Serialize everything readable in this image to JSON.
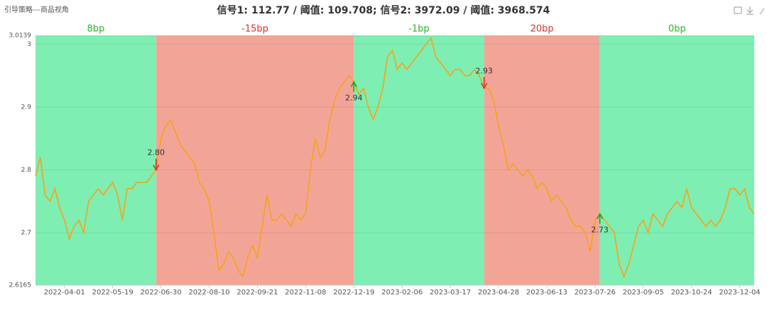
{
  "chart_data": {
    "type": "line",
    "page_label": "引导策略---商品视角",
    "title": "信号1: 112.77 / 阈值: 109.708; 信号2: 3972.09 / 阈值: 3968.574",
    "categories": [
      null,
      null,
      null,
      null,
      null,
      null,
      "2022-04-01",
      null,
      null,
      null,
      null,
      null,
      null,
      null,
      null,
      null,
      "2022-05-19",
      null,
      null,
      null,
      null,
      null,
      null,
      null,
      null,
      null,
      "2022-06-30",
      null,
      null,
      null,
      null,
      null,
      null,
      null,
      null,
      null,
      "2022-08-10",
      null,
      null,
      null,
      null,
      null,
      null,
      null,
      null,
      null,
      "2022-09-21",
      null,
      null,
      null,
      null,
      null,
      null,
      null,
      null,
      null,
      "2022-11-08",
      null,
      null,
      null,
      null,
      null,
      null,
      null,
      null,
      null,
      "2022-12-19",
      null,
      null,
      null,
      null,
      null,
      null,
      null,
      null,
      null,
      "2023-02-06",
      null,
      null,
      null,
      null,
      null,
      null,
      null,
      null,
      null,
      "2023-03-17",
      null,
      null,
      null,
      null,
      null,
      null,
      null,
      null,
      null,
      "2023-04-28",
      null,
      null,
      null,
      null,
      null,
      null,
      null,
      null,
      null,
      "2023-06-13",
      null,
      null,
      null,
      null,
      null,
      null,
      null,
      null,
      null,
      "2023-07-26",
      null,
      null,
      null,
      null,
      null,
      null,
      null,
      null,
      null,
      "2023-09-05",
      null,
      null,
      null,
      null,
      null,
      null,
      null,
      null,
      null,
      "2023-10-24",
      null,
      null,
      null,
      null,
      null,
      null,
      null,
      null,
      null,
      "2023-12-04",
      null,
      null,
      null
    ],
    "series": [
      {
        "color": "#f7a21b",
        "values": [
          2.79,
          2.82,
          2.76,
          2.75,
          2.77,
          2.74,
          2.72,
          2.69,
          2.71,
          2.72,
          2.7,
          2.75,
          2.76,
          2.77,
          2.76,
          2.77,
          2.78,
          2.76,
          2.72,
          2.77,
          2.77,
          2.78,
          2.78,
          2.78,
          2.79,
          2.8,
          2.85,
          2.87,
          2.88,
          2.86,
          2.84,
          2.83,
          2.82,
          2.81,
          2.78,
          2.77,
          2.75,
          2.7,
          2.64,
          2.65,
          2.67,
          2.66,
          2.64,
          2.63,
          2.66,
          2.68,
          2.66,
          2.71,
          2.76,
          2.72,
          2.72,
          2.73,
          2.72,
          2.71,
          2.73,
          2.72,
          2.73,
          2.8,
          2.85,
          2.82,
          2.83,
          2.88,
          2.91,
          2.93,
          2.94,
          2.95,
          2.94,
          2.92,
          2.93,
          2.9,
          2.88,
          2.9,
          2.93,
          2.98,
          2.99,
          2.96,
          2.97,
          2.96,
          2.97,
          2.98,
          2.99,
          3.0,
          3.01,
          2.98,
          2.97,
          2.96,
          2.95,
          2.96,
          2.96,
          2.95,
          2.95,
          2.96,
          2.95,
          2.93,
          2.93,
          2.91,
          2.87,
          2.84,
          2.8,
          2.81,
          2.8,
          2.79,
          2.8,
          2.79,
          2.77,
          2.78,
          2.77,
          2.75,
          2.76,
          2.75,
          2.74,
          2.72,
          2.71,
          2.71,
          2.7,
          2.67,
          2.72,
          2.73,
          2.72,
          2.71,
          2.7,
          2.65,
          2.63,
          2.65,
          2.68,
          2.71,
          2.72,
          2.7,
          2.73,
          2.72,
          2.71,
          2.73,
          2.74,
          2.75,
          2.74,
          2.77,
          2.74,
          2.73,
          2.72,
          2.71,
          2.72,
          2.71,
          2.72,
          2.74,
          2.77,
          2.77,
          2.76,
          2.77,
          2.74,
          2.73
        ]
      }
    ],
    "ylim": [
      2.6165,
      3.0139
    ],
    "yticks": [
      2.6165,
      2.7,
      2.8,
      2.9,
      3,
      3.0139
    ],
    "grid": true,
    "regions": [
      {
        "start": 0,
        "end": 25,
        "label": "8bp",
        "color": "#7eeeb2",
        "label_color": "#2ab52a"
      },
      {
        "start": 25,
        "end": 66,
        "label": "-15bp",
        "color": "#f2a597",
        "label_color": "#e0302a"
      },
      {
        "start": 66,
        "end": 93,
        "label": "-1bp",
        "color": "#7eeeb2",
        "label_color": "#2ab52a"
      },
      {
        "start": 93,
        "end": 117,
        "label": "20bp",
        "color": "#f2a597",
        "label_color": "#e0302a"
      },
      {
        "start": 117,
        "end": 149,
        "label": "0bp",
        "color": "#7eeeb2",
        "label_color": "#2ab52a"
      }
    ],
    "signals": [
      {
        "index": 25,
        "value": 2.8,
        "label": "2.80",
        "direction": "down",
        "color": "#d62a1e"
      },
      {
        "index": 66,
        "value": 2.94,
        "label": "2.94",
        "direction": "up",
        "color": "#1aa51a"
      },
      {
        "index": 93,
        "value": 2.93,
        "label": "2.93",
        "direction": "down",
        "color": "#d62a1e"
      },
      {
        "index": 117,
        "value": 2.73,
        "label": "2.73",
        "direction": "up",
        "color": "#1aa51a"
      }
    ]
  }
}
